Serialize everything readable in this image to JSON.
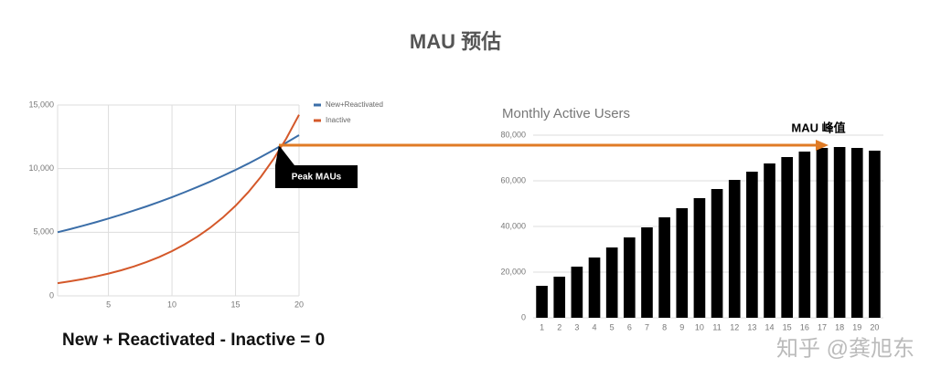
{
  "title": "MAU 预估",
  "formula": "New + Reactivated - Inactive = 0",
  "watermark": "知乎 @龚旭东",
  "chart_data": [
    {
      "type": "line",
      "annotation": "Peak MAUs",
      "x": [
        1,
        2,
        3,
        4,
        5,
        6,
        7,
        8,
        9,
        10,
        11,
        12,
        13,
        14,
        15,
        16,
        17,
        18,
        19,
        20
      ],
      "xlim": [
        1,
        20
      ],
      "xticks": [
        5,
        10,
        15,
        20
      ],
      "ylim": [
        0,
        15000
      ],
      "yticks": [
        0,
        {
          "value": 5000,
          "label": "5,000"
        },
        {
          "value": 10000,
          "label": "10,000"
        },
        {
          "value": 15000,
          "label": "15,000"
        }
      ],
      "grid": true,
      "legend": "top-right",
      "series": [
        {
          "name": "New+Reactivated",
          "color": "#3b6ea8",
          "values": [
            5000,
            5250,
            5513,
            5788,
            6078,
            6381,
            6700,
            7036,
            7387,
            7757,
            8144,
            8552,
            8979,
            9428,
            9900,
            10395,
            10914,
            11460,
            12033,
            12635
          ]
        },
        {
          "name": "Inactive",
          "color": "#d4582a",
          "values": [
            1000,
            1150,
            1323,
            1521,
            1749,
            2011,
            2313,
            2660,
            3059,
            3518,
            4046,
            4652,
            5350,
            6153,
            7076,
            8137,
            9358,
            10761,
            12375,
            14232
          ]
        }
      ]
    },
    {
      "type": "bar",
      "title": "Monthly Active Users",
      "annotation": "MAU 峰值",
      "categories": [
        "1",
        "2",
        "3",
        "4",
        "5",
        "6",
        "7",
        "8",
        "9",
        "10",
        "11",
        "12",
        "13",
        "14",
        "15",
        "16",
        "17",
        "18",
        "19",
        "20"
      ],
      "values": [
        14000,
        18000,
        22400,
        26400,
        30800,
        35200,
        39600,
        44000,
        48000,
        52400,
        56400,
        60400,
        64000,
        67600,
        70400,
        72800,
        74400,
        74800,
        74400,
        73200
      ],
      "color": "#000000",
      "ylim": [
        0,
        80000
      ],
      "yticks": [
        0,
        {
          "value": 20000,
          "label": "20,000"
        },
        {
          "value": 40000,
          "label": "40,000"
        },
        {
          "value": 60000,
          "label": "60,000"
        },
        {
          "value": 80000,
          "label": "80,000"
        }
      ],
      "grid": true
    }
  ]
}
